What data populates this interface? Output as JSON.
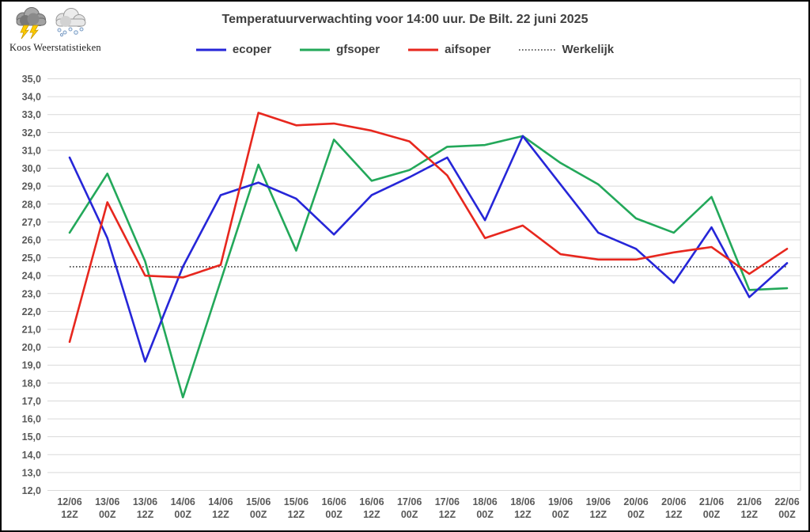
{
  "branding": {
    "name": "Koos Weerstatistieken",
    "icons": [
      "storm-cloud-lightning-icon",
      "snow-cloud-icon"
    ]
  },
  "chart_data": {
    "type": "line",
    "title": "Temperatuurverwachting voor 14:00 uur. De Bilt. 22 juni 2025",
    "categories": [
      {
        "date": "12/06",
        "time": "12Z"
      },
      {
        "date": "13/06",
        "time": "00Z"
      },
      {
        "date": "13/06",
        "time": "12Z"
      },
      {
        "date": "14/06",
        "time": "00Z"
      },
      {
        "date": "14/06",
        "time": "12Z"
      },
      {
        "date": "15/06",
        "time": "00Z"
      },
      {
        "date": "15/06",
        "time": "12Z"
      },
      {
        "date": "16/06",
        "time": "00Z"
      },
      {
        "date": "16/06",
        "time": "12Z"
      },
      {
        "date": "17/06",
        "time": "00Z"
      },
      {
        "date": "17/06",
        "time": "12Z"
      },
      {
        "date": "18/06",
        "time": "00Z"
      },
      {
        "date": "18/06",
        "time": "12Z"
      },
      {
        "date": "19/06",
        "time": "00Z"
      },
      {
        "date": "19/06",
        "time": "12Z"
      },
      {
        "date": "20/06",
        "time": "00Z"
      },
      {
        "date": "20/06",
        "time": "12Z"
      },
      {
        "date": "21/06",
        "time": "00Z"
      },
      {
        "date": "21/06",
        "time": "12Z"
      },
      {
        "date": "22/06",
        "time": "00Z"
      }
    ],
    "series": [
      {
        "name": "ecoper",
        "color": "#2626d8",
        "style": "solid",
        "values": [
          30.6,
          26.1,
          19.2,
          24.5,
          28.5,
          29.2,
          28.3,
          26.3,
          28.5,
          29.5,
          30.6,
          27.1,
          31.8,
          29.1,
          26.4,
          25.5,
          23.6,
          26.7,
          22.8,
          24.7
        ]
      },
      {
        "name": "gfsoper",
        "color": "#23a85a",
        "style": "solid",
        "values": [
          26.4,
          29.7,
          24.8,
          17.2,
          23.7,
          30.2,
          25.4,
          31.6,
          29.3,
          29.9,
          31.2,
          31.3,
          31.8,
          30.3,
          29.1,
          27.2,
          26.4,
          28.4,
          23.2,
          23.3
        ]
      },
      {
        "name": "aifsoper",
        "color": "#e7271e",
        "style": "solid",
        "values": [
          20.3,
          28.1,
          24.0,
          23.9,
          24.6,
          33.1,
          32.4,
          32.5,
          32.1,
          31.5,
          29.6,
          26.1,
          26.8,
          25.2,
          24.9,
          24.9,
          25.3,
          25.6,
          24.1,
          25.5
        ]
      },
      {
        "name": "Werkelijk",
        "color": "#3a3a3a",
        "style": "dotted",
        "constant": 24.5
      }
    ],
    "ylim": [
      12.0,
      35.0
    ],
    "ytick_step": 1.0,
    "ytick_format": "comma-decimal",
    "grid": "horizontal",
    "grid_color": "#d9d9d9",
    "axis_label_color": "#595959",
    "legend_position": "top"
  }
}
